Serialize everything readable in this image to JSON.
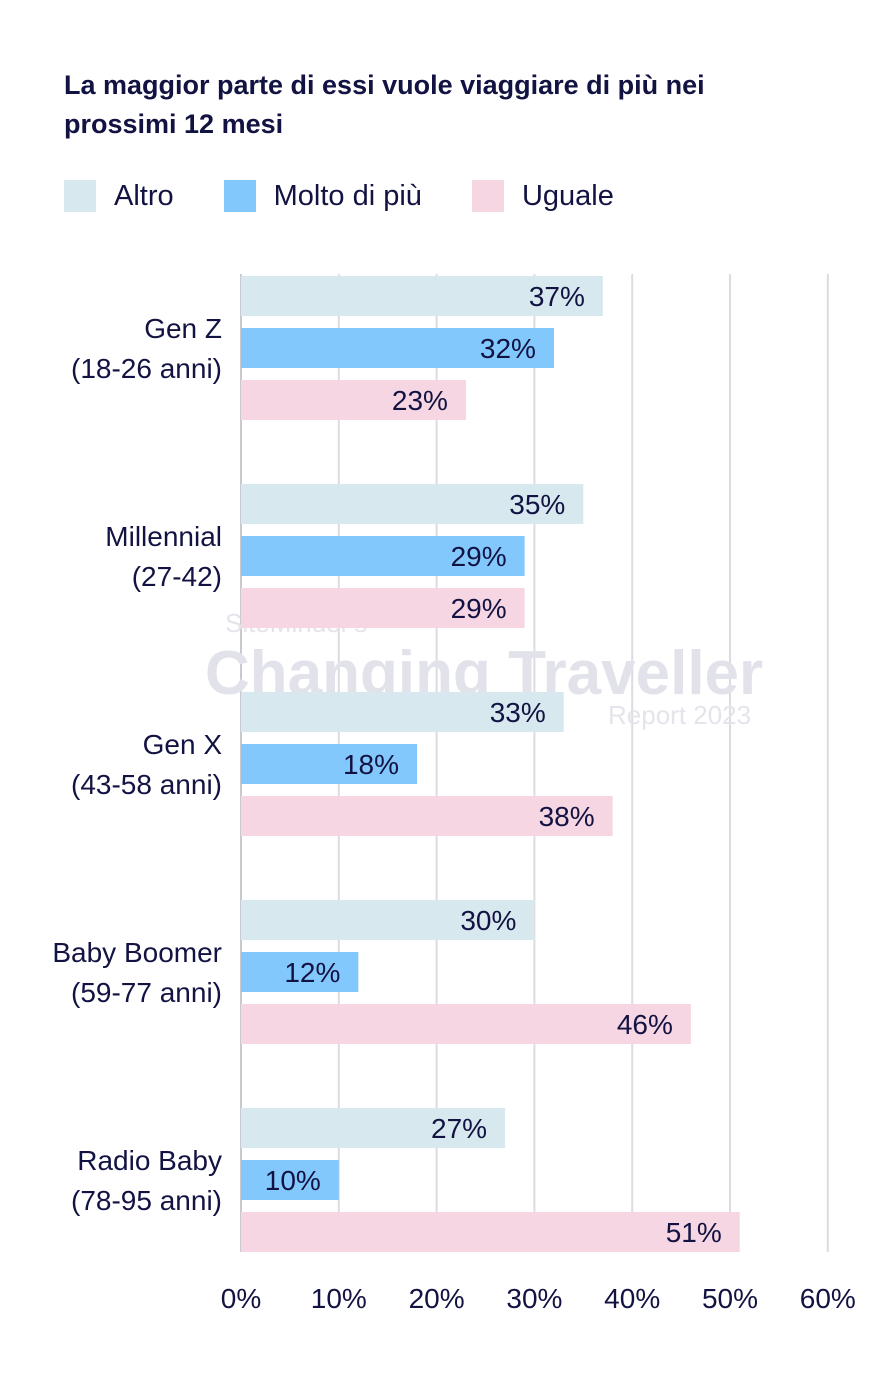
{
  "chart_data": {
    "type": "bar",
    "orientation": "horizontal",
    "title": "La maggior parte di essi vuole viaggiare di più nei prossimi 12 mesi",
    "categories": [
      [
        "Gen Z",
        "(18-26 anni)"
      ],
      [
        "Millennial",
        "(27-42)"
      ],
      [
        "Gen X",
        "(43-58 anni)"
      ],
      [
        "Baby Boomer",
        "(59-77 anni)"
      ],
      [
        "Radio Baby",
        "(78-95 anni)"
      ]
    ],
    "series": [
      {
        "name": "Altro",
        "color": "#d8e8ef",
        "values": [
          37,
          35,
          33,
          30,
          27
        ]
      },
      {
        "name": "Molto di più",
        "color": "#82c8fd",
        "values": [
          32,
          29,
          18,
          12,
          10
        ]
      },
      {
        "name": "Uguale",
        "color": "#f6d6e2",
        "values": [
          23,
          29,
          38,
          46,
          51
        ]
      }
    ],
    "value_suffix": "%",
    "xlim": [
      0,
      60
    ],
    "xticks": [
      0,
      10,
      20,
      30,
      40,
      50,
      60
    ],
    "xtick_labels": [
      "0%",
      "10%",
      "20%",
      "30%",
      "40%",
      "50%",
      "60%"
    ],
    "grid": true,
    "legend_position": "top-left"
  },
  "watermark": {
    "line1": "SiteMinder's",
    "line2": "Changing Traveller",
    "line3": "Report 2023"
  }
}
